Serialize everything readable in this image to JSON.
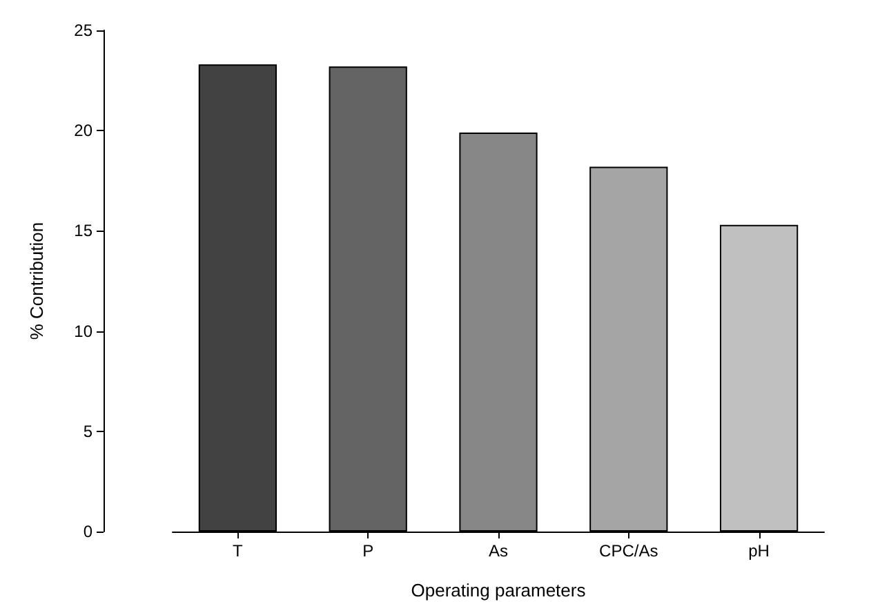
{
  "chart_data": {
    "type": "bar",
    "xlabel": "Operating parameters",
    "ylabel": "% Contribution",
    "categories": [
      "T",
      "P",
      "As",
      "CPC/As",
      "pH"
    ],
    "values": [
      23.3,
      23.2,
      19.9,
      18.2,
      15.3
    ],
    "colors": [
      "#424242",
      "#646464",
      "#878787",
      "#a5a5a5",
      "#c0c0c0"
    ],
    "ylim": [
      0,
      25
    ],
    "yticks": [
      0,
      5,
      10,
      15,
      20,
      25
    ],
    "grid": false
  }
}
